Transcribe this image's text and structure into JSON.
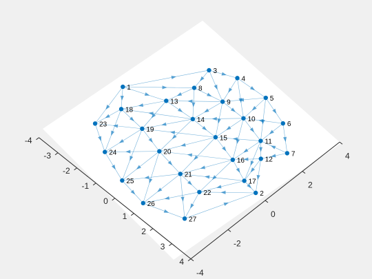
{
  "chart_data": {
    "type": "graph3d",
    "title": "",
    "xlabel": "",
    "ylabel": "",
    "xlim": [
      -4,
      4
    ],
    "ylim": [
      -4,
      4
    ],
    "x_ticks": [
      "-4",
      "-3",
      "-2",
      "-1",
      "0",
      "1",
      "2",
      "3",
      "4"
    ],
    "y_ticks": [
      "-4",
      "-2",
      "0",
      "2",
      "4"
    ],
    "nodes": [
      {
        "id": "1",
        "x": -3.5,
        "y": 0.0
      },
      {
        "id": "2",
        "x": 3.5,
        "y": 0.0
      },
      {
        "id": "3",
        "x": -1.8,
        "y": 2.9
      },
      {
        "id": "4",
        "x": -0.8,
        "y": 3.4
      },
      {
        "id": "5",
        "x": 0.6,
        "y": 3.5
      },
      {
        "id": "6",
        "x": 1.9,
        "y": 3.1
      },
      {
        "id": "7",
        "x": 3.0,
        "y": 2.2
      },
      {
        "id": "8",
        "x": -1.6,
        "y": 1.9
      },
      {
        "id": "9",
        "x": -0.4,
        "y": 2.2
      },
      {
        "id": "10",
        "x": 0.7,
        "y": 2.2
      },
      {
        "id": "11",
        "x": 1.9,
        "y": 1.9
      },
      {
        "id": "12",
        "x": 2.5,
        "y": 1.3
      },
      {
        "id": "13",
        "x": -1.9,
        "y": 0.7
      },
      {
        "id": "14",
        "x": -0.6,
        "y": 0.8
      },
      {
        "id": "15",
        "x": 0.6,
        "y": 0.8
      },
      {
        "id": "16",
        "x": 1.8,
        "y": 0.5
      },
      {
        "id": "17",
        "x": 2.8,
        "y": 0.1
      },
      {
        "id": "18",
        "x": -2.8,
        "y": -0.8
      },
      {
        "id": "19",
        "x": -1.6,
        "y": -0.9
      },
      {
        "id": "20",
        "x": -0.4,
        "y": -1.2
      },
      {
        "id": "21",
        "x": 0.9,
        "y": -1.4
      },
      {
        "id": "22",
        "x": 2.0,
        "y": -1.5
      },
      {
        "id": "23",
        "x": -3.0,
        "y": -2.0
      },
      {
        "id": "24",
        "x": -1.8,
        "y": -2.7
      },
      {
        "id": "25",
        "x": -0.4,
        "y": -3.2
      },
      {
        "id": "26",
        "x": 0.9,
        "y": -3.4
      },
      {
        "id": "27",
        "x": 2.5,
        "y": -2.8
      }
    ],
    "edges": [
      [
        "1",
        "3"
      ],
      [
        "3",
        "4"
      ],
      [
        "4",
        "5"
      ],
      [
        "5",
        "6"
      ],
      [
        "6",
        "7"
      ],
      [
        "7",
        "12"
      ],
      [
        "12",
        "2"
      ],
      [
        "1",
        "23"
      ],
      [
        "23",
        "24"
      ],
      [
        "24",
        "25"
      ],
      [
        "25",
        "26"
      ],
      [
        "26",
        "27"
      ],
      [
        "27",
        "2"
      ],
      [
        "3",
        "8"
      ],
      [
        "3",
        "9"
      ],
      [
        "4",
        "9"
      ],
      [
        "4",
        "10"
      ],
      [
        "5",
        "9"
      ],
      [
        "5",
        "10"
      ],
      [
        "5",
        "11"
      ],
      [
        "6",
        "10"
      ],
      [
        "6",
        "11"
      ],
      [
        "7",
        "11"
      ],
      [
        "8",
        "9"
      ],
      [
        "9",
        "10"
      ],
      [
        "10",
        "11"
      ],
      [
        "11",
        "12"
      ],
      [
        "1",
        "13"
      ],
      [
        "1",
        "8"
      ],
      [
        "1",
        "18"
      ],
      [
        "8",
        "13"
      ],
      [
        "8",
        "14"
      ],
      [
        "9",
        "13"
      ],
      [
        "9",
        "14"
      ],
      [
        "9",
        "15"
      ],
      [
        "10",
        "14"
      ],
      [
        "10",
        "15"
      ],
      [
        "10",
        "16"
      ],
      [
        "11",
        "15"
      ],
      [
        "11",
        "16"
      ],
      [
        "11",
        "17"
      ],
      [
        "12",
        "16"
      ],
      [
        "12",
        "17"
      ],
      [
        "13",
        "14"
      ],
      [
        "14",
        "15"
      ],
      [
        "15",
        "16"
      ],
      [
        "16",
        "17"
      ],
      [
        "17",
        "2"
      ],
      [
        "13",
        "18"
      ],
      [
        "13",
        "19"
      ],
      [
        "14",
        "18"
      ],
      [
        "14",
        "19"
      ],
      [
        "14",
        "20"
      ],
      [
        "15",
        "19"
      ],
      [
        "15",
        "20"
      ],
      [
        "15",
        "21"
      ],
      [
        "16",
        "20"
      ],
      [
        "16",
        "21"
      ],
      [
        "16",
        "22"
      ],
      [
        "17",
        "21"
      ],
      [
        "17",
        "22"
      ],
      [
        "2",
        "22"
      ],
      [
        "18",
        "19"
      ],
      [
        "19",
        "20"
      ],
      [
        "20",
        "21"
      ],
      [
        "21",
        "22"
      ],
      [
        "18",
        "23"
      ],
      [
        "18",
        "24"
      ],
      [
        "19",
        "23"
      ],
      [
        "19",
        "24"
      ],
      [
        "19",
        "25"
      ],
      [
        "20",
        "24"
      ],
      [
        "20",
        "25"
      ],
      [
        "20",
        "26"
      ],
      [
        "21",
        "25"
      ],
      [
        "21",
        "26"
      ],
      [
        "21",
        "27"
      ],
      [
        "22",
        "26"
      ],
      [
        "22",
        "27"
      ]
    ]
  }
}
